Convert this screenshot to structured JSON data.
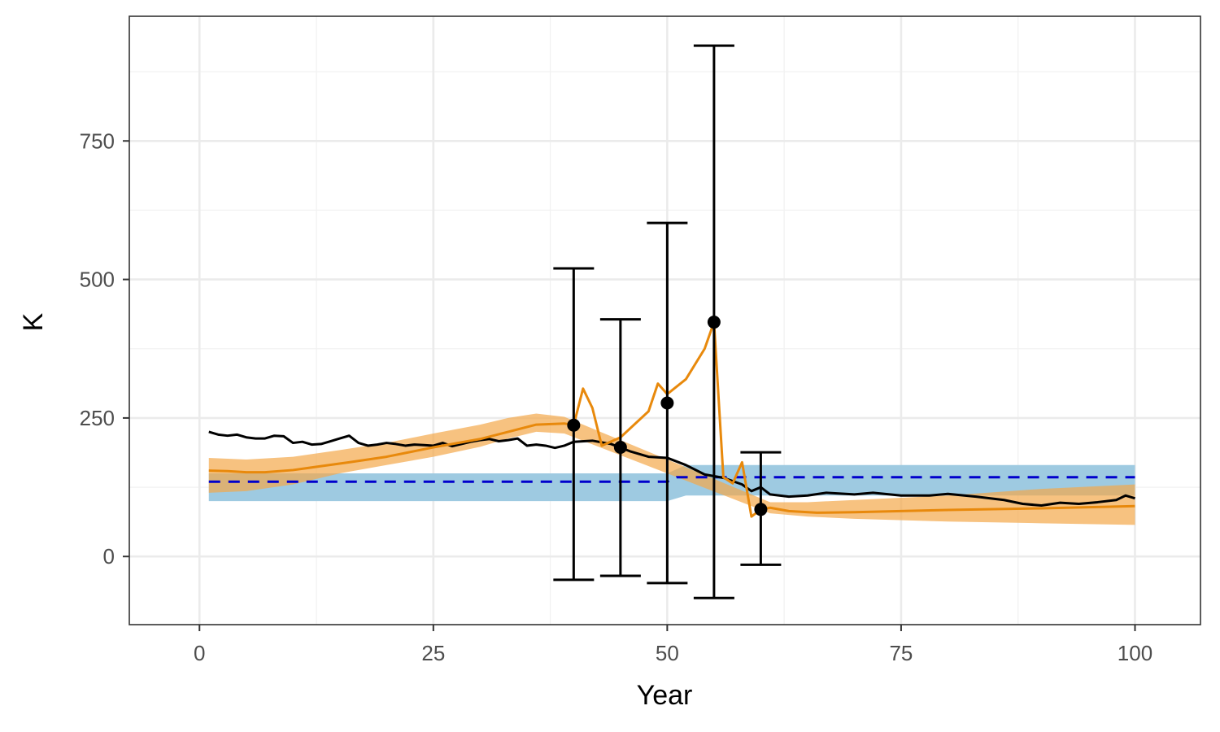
{
  "chart_data": {
    "type": "line",
    "title": "",
    "xlabel": "Year",
    "ylabel": "K",
    "xlim": [
      -7.5,
      107
    ],
    "ylim": [
      -123,
      975
    ],
    "grid": true,
    "legend": "none",
    "x_ticks": [
      {
        "value": 0,
        "label": "0"
      },
      {
        "value": 25,
        "label": "25"
      },
      {
        "value": 50,
        "label": "50"
      },
      {
        "value": 75,
        "label": "75"
      },
      {
        "value": 100,
        "label": "100"
      }
    ],
    "y_ticks": [
      {
        "value": 0,
        "label": "0"
      },
      {
        "value": 250,
        "label": "250"
      },
      {
        "value": 500,
        "label": "500"
      },
      {
        "value": 750,
        "label": "750"
      }
    ],
    "x_minor": [
      12.5,
      37.5,
      62.5,
      87.5
    ],
    "y_minor": [
      125,
      375,
      625,
      875
    ],
    "colors": {
      "panel_border": "#333333",
      "grid_major": "#ebebeb",
      "grid_minor": "#f2f2f2",
      "blue_band": "#9ecae1",
      "orange_band": "#f4a84a",
      "orange_line": "#e8890c",
      "black_line": "#000000",
      "blue_dashed": "#0000cc",
      "tick": "#333333"
    },
    "blue_band": [
      {
        "x": 1,
        "lower": 100,
        "upper": 150
      },
      {
        "x": 50,
        "lower": 100,
        "upper": 150
      },
      {
        "x": 52,
        "lower": 110,
        "upper": 165
      },
      {
        "x": 100,
        "lower": 110,
        "upper": 165
      }
    ],
    "blue_dashed": [
      {
        "x": 1,
        "y": 135
      },
      {
        "x": 50,
        "y": 135
      },
      {
        "x": 51,
        "y": 143
      },
      {
        "x": 100,
        "y": 143
      }
    ],
    "orange_band": [
      {
        "x": 1,
        "lower": 115,
        "upper": 178
      },
      {
        "x": 5,
        "lower": 118,
        "upper": 175
      },
      {
        "x": 10,
        "lower": 130,
        "upper": 180
      },
      {
        "x": 15,
        "lower": 150,
        "upper": 192
      },
      {
        "x": 20,
        "lower": 165,
        "upper": 205
      },
      {
        "x": 25,
        "lower": 180,
        "upper": 222
      },
      {
        "x": 30,
        "lower": 198,
        "upper": 238
      },
      {
        "x": 33,
        "lower": 213,
        "upper": 250
      },
      {
        "x": 36,
        "lower": 225,
        "upper": 258
      },
      {
        "x": 39,
        "lower": 222,
        "upper": 252
      },
      {
        "x": 61,
        "lower": 78,
        "upper": 98
      },
      {
        "x": 65,
        "lower": 72,
        "upper": 98
      },
      {
        "x": 70,
        "lower": 68,
        "upper": 102
      },
      {
        "x": 80,
        "lower": 63,
        "upper": 110
      },
      {
        "x": 90,
        "lower": 60,
        "upper": 122
      },
      {
        "x": 100,
        "lower": 57,
        "upper": 130
      }
    ],
    "orange_line": [
      {
        "x": 1,
        "y": 155
      },
      {
        "x": 3,
        "y": 154
      },
      {
        "x": 5,
        "y": 152
      },
      {
        "x": 7,
        "y": 152
      },
      {
        "x": 10,
        "y": 156
      },
      {
        "x": 13,
        "y": 163
      },
      {
        "x": 16,
        "y": 170
      },
      {
        "x": 20,
        "y": 180
      },
      {
        "x": 25,
        "y": 197
      },
      {
        "x": 30,
        "y": 212
      },
      {
        "x": 33,
        "y": 225
      },
      {
        "x": 36,
        "y": 238
      },
      {
        "x": 39,
        "y": 240
      },
      {
        "x": 40,
        "y": 237
      },
      {
        "x": 41,
        "y": 303
      },
      {
        "x": 42,
        "y": 268
      },
      {
        "x": 43,
        "y": 200
      },
      {
        "x": 45,
        "y": 215
      },
      {
        "x": 48,
        "y": 262
      },
      {
        "x": 49,
        "y": 312
      },
      {
        "x": 50,
        "y": 293
      },
      {
        "x": 52,
        "y": 320
      },
      {
        "x": 54,
        "y": 375
      },
      {
        "x": 55,
        "y": 423
      },
      {
        "x": 56,
        "y": 143
      },
      {
        "x": 57,
        "y": 132
      },
      {
        "x": 58,
        "y": 170
      },
      {
        "x": 59,
        "y": 72
      },
      {
        "x": 60,
        "y": 85
      },
      {
        "x": 61,
        "y": 88
      },
      {
        "x": 63,
        "y": 82
      },
      {
        "x": 66,
        "y": 79
      },
      {
        "x": 70,
        "y": 80
      },
      {
        "x": 80,
        "y": 84
      },
      {
        "x": 90,
        "y": 87
      },
      {
        "x": 100,
        "y": 91
      }
    ],
    "black_line": [
      {
        "x": 1,
        "y": 225
      },
      {
        "x": 2,
        "y": 220
      },
      {
        "x": 3,
        "y": 218
      },
      {
        "x": 4,
        "y": 220
      },
      {
        "x": 5,
        "y": 215
      },
      {
        "x": 6,
        "y": 213
      },
      {
        "x": 7,
        "y": 213
      },
      {
        "x": 8,
        "y": 218
      },
      {
        "x": 9,
        "y": 217
      },
      {
        "x": 10,
        "y": 205
      },
      {
        "x": 11,
        "y": 207
      },
      {
        "x": 12,
        "y": 202
      },
      {
        "x": 13,
        "y": 203
      },
      {
        "x": 14,
        "y": 208
      },
      {
        "x": 15,
        "y": 213
      },
      {
        "x": 16,
        "y": 218
      },
      {
        "x": 17,
        "y": 205
      },
      {
        "x": 18,
        "y": 200
      },
      {
        "x": 19,
        "y": 202
      },
      {
        "x": 20,
        "y": 205
      },
      {
        "x": 21,
        "y": 203
      },
      {
        "x": 22,
        "y": 200
      },
      {
        "x": 23,
        "y": 202
      },
      {
        "x": 24,
        "y": 201
      },
      {
        "x": 25,
        "y": 200
      },
      {
        "x": 26,
        "y": 205
      },
      {
        "x": 27,
        "y": 199
      },
      {
        "x": 28,
        "y": 203
      },
      {
        "x": 29,
        "y": 207
      },
      {
        "x": 30,
        "y": 210
      },
      {
        "x": 31,
        "y": 212
      },
      {
        "x": 32,
        "y": 208
      },
      {
        "x": 33,
        "y": 210
      },
      {
        "x": 34,
        "y": 213
      },
      {
        "x": 35,
        "y": 200
      },
      {
        "x": 36,
        "y": 202
      },
      {
        "x": 37,
        "y": 200
      },
      {
        "x": 38,
        "y": 196
      },
      {
        "x": 39,
        "y": 200
      },
      {
        "x": 40,
        "y": 207
      },
      {
        "x": 42,
        "y": 209
      },
      {
        "x": 44,
        "y": 203
      },
      {
        "x": 46,
        "y": 190
      },
      {
        "x": 48,
        "y": 180
      },
      {
        "x": 50,
        "y": 178
      },
      {
        "x": 52,
        "y": 165
      },
      {
        "x": 54,
        "y": 148
      },
      {
        "x": 56,
        "y": 142
      },
      {
        "x": 58,
        "y": 130
      },
      {
        "x": 59,
        "y": 118
      },
      {
        "x": 60,
        "y": 125
      },
      {
        "x": 61,
        "y": 112
      },
      {
        "x": 63,
        "y": 108
      },
      {
        "x": 65,
        "y": 110
      },
      {
        "x": 67,
        "y": 115
      },
      {
        "x": 70,
        "y": 112
      },
      {
        "x": 72,
        "y": 115
      },
      {
        "x": 75,
        "y": 110
      },
      {
        "x": 78,
        "y": 110
      },
      {
        "x": 80,
        "y": 113
      },
      {
        "x": 83,
        "y": 108
      },
      {
        "x": 86,
        "y": 102
      },
      {
        "x": 88,
        "y": 95
      },
      {
        "x": 90,
        "y": 92
      },
      {
        "x": 92,
        "y": 97
      },
      {
        "x": 94,
        "y": 95
      },
      {
        "x": 96,
        "y": 98
      },
      {
        "x": 98,
        "y": 102
      },
      {
        "x": 99,
        "y": 110
      },
      {
        "x": 100,
        "y": 105
      }
    ],
    "points": [
      {
        "x": 40,
        "y": 237,
        "lower": -42,
        "upper": 520
      },
      {
        "x": 45,
        "y": 197,
        "lower": -35,
        "upper": 428
      },
      {
        "x": 50,
        "y": 277,
        "lower": -48,
        "upper": 602
      },
      {
        "x": 55,
        "y": 423,
        "lower": -75,
        "upper": 922
      },
      {
        "x": 60,
        "y": 85,
        "lower": -15,
        "upper": 188
      }
    ]
  }
}
